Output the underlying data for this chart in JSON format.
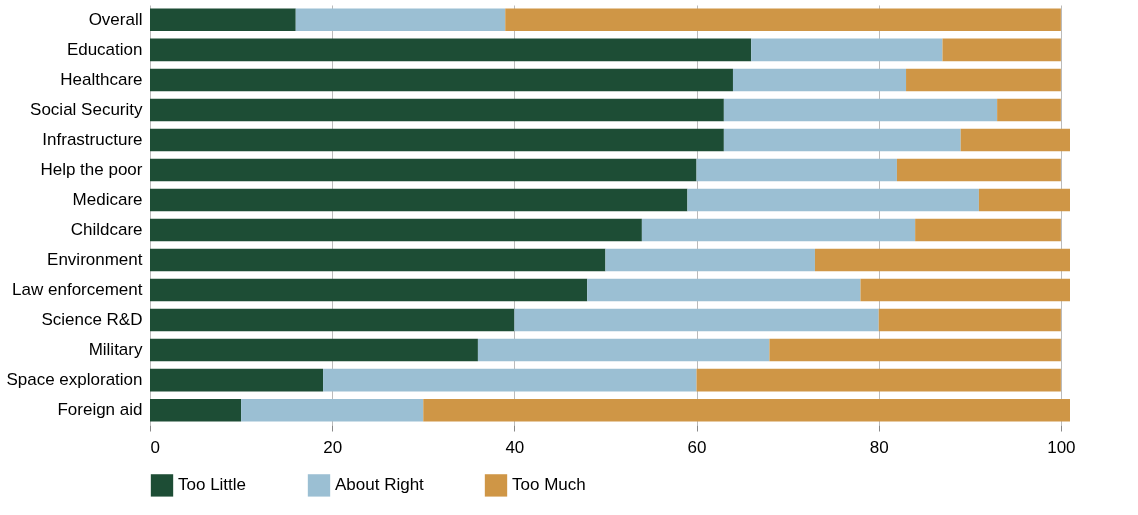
{
  "chart_data": {
    "type": "bar",
    "orientation": "horizontal",
    "stacked": true,
    "categories": [
      "Overall",
      "Education",
      "Healthcare",
      "Social Security",
      "Infrastructure",
      "Help the poor",
      "Medicare",
      "Childcare",
      "Environment",
      "Law enforcement",
      "Science R&D",
      "Military",
      "Space exploration",
      "Foreign aid"
    ],
    "series": [
      {
        "name": "Too Little",
        "color": "#1d4d35",
        "values": [
          16,
          66,
          64,
          63,
          63,
          60,
          59,
          54,
          50,
          48,
          40,
          36,
          19,
          10
        ]
      },
      {
        "name": "About Right",
        "color": "#9bbfd3",
        "values": [
          23,
          21,
          19,
          30,
          26,
          22,
          32,
          30,
          23,
          30,
          40,
          32,
          41,
          20
        ]
      },
      {
        "name": "Too Much",
        "color": "#cf9646",
        "values": [
          61,
          13,
          17,
          7,
          12,
          18,
          10,
          16,
          28,
          23,
          20,
          32,
          40,
          71
        ]
      }
    ],
    "xlim": [
      0,
      101
    ],
    "xticks": [
      0,
      20,
      40,
      60,
      80,
      100
    ],
    "grid": "x",
    "legend": "bottom"
  }
}
